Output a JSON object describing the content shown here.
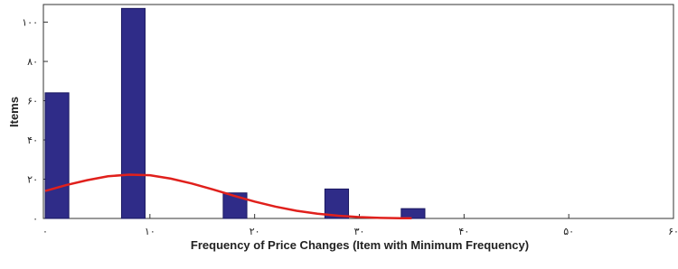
{
  "chart_data": {
    "type": "histogram",
    "xlabel": "Frequency of Price Changes (Item with Minimum Frequency)",
    "ylabel": "Items",
    "bins": [
      0,
      2.43,
      4.86,
      7.29,
      9.71,
      12.14,
      14.57,
      17,
      19.43,
      21.86,
      24.29,
      26.71,
      29.14,
      31.57,
      34,
      36.43
    ],
    "counts": [
      64,
      0,
      0,
      107,
      0,
      0,
      0,
      13,
      0,
      0,
      0,
      15,
      0,
      0,
      5
    ],
    "color": "#2f2c88",
    "fit": {
      "x": [
        0,
        2,
        4,
        6,
        8,
        10,
        12,
        14,
        16,
        18,
        20,
        22,
        24,
        26,
        28,
        30,
        32,
        34,
        35
      ],
      "values": [
        14,
        17,
        19.5,
        21.5,
        22.3,
        22,
        20.3,
        17.8,
        14.8,
        11.6,
        8.6,
        6,
        3.9,
        2.4,
        1.4,
        0.7,
        0.3,
        0.1,
        0.1
      ],
      "color": "#e0201c"
    },
    "xlim": [
      0,
      60
    ],
    "xticks": [
      {
        "value": 0,
        "label": "۰"
      },
      {
        "value": 10,
        "label": "۱۰"
      },
      {
        "value": 20,
        "label": "۲۰"
      },
      {
        "value": 30,
        "label": "۳۰"
      },
      {
        "value": 40,
        "label": "۴۰"
      },
      {
        "value": 50,
        "label": "۵۰"
      },
      {
        "value": 60,
        "label": "۶۰"
      }
    ],
    "ylim": [
      0,
      109
    ],
    "yticks": [
      {
        "value": 0,
        "label": "۰"
      },
      {
        "value": 20,
        "label": "۲۰"
      },
      {
        "value": 40,
        "label": "۴۰"
      },
      {
        "value": 60,
        "label": "۶۰"
      },
      {
        "value": 80,
        "label": "۸۰"
      },
      {
        "value": 100,
        "label": "۱۰۰"
      }
    ]
  }
}
